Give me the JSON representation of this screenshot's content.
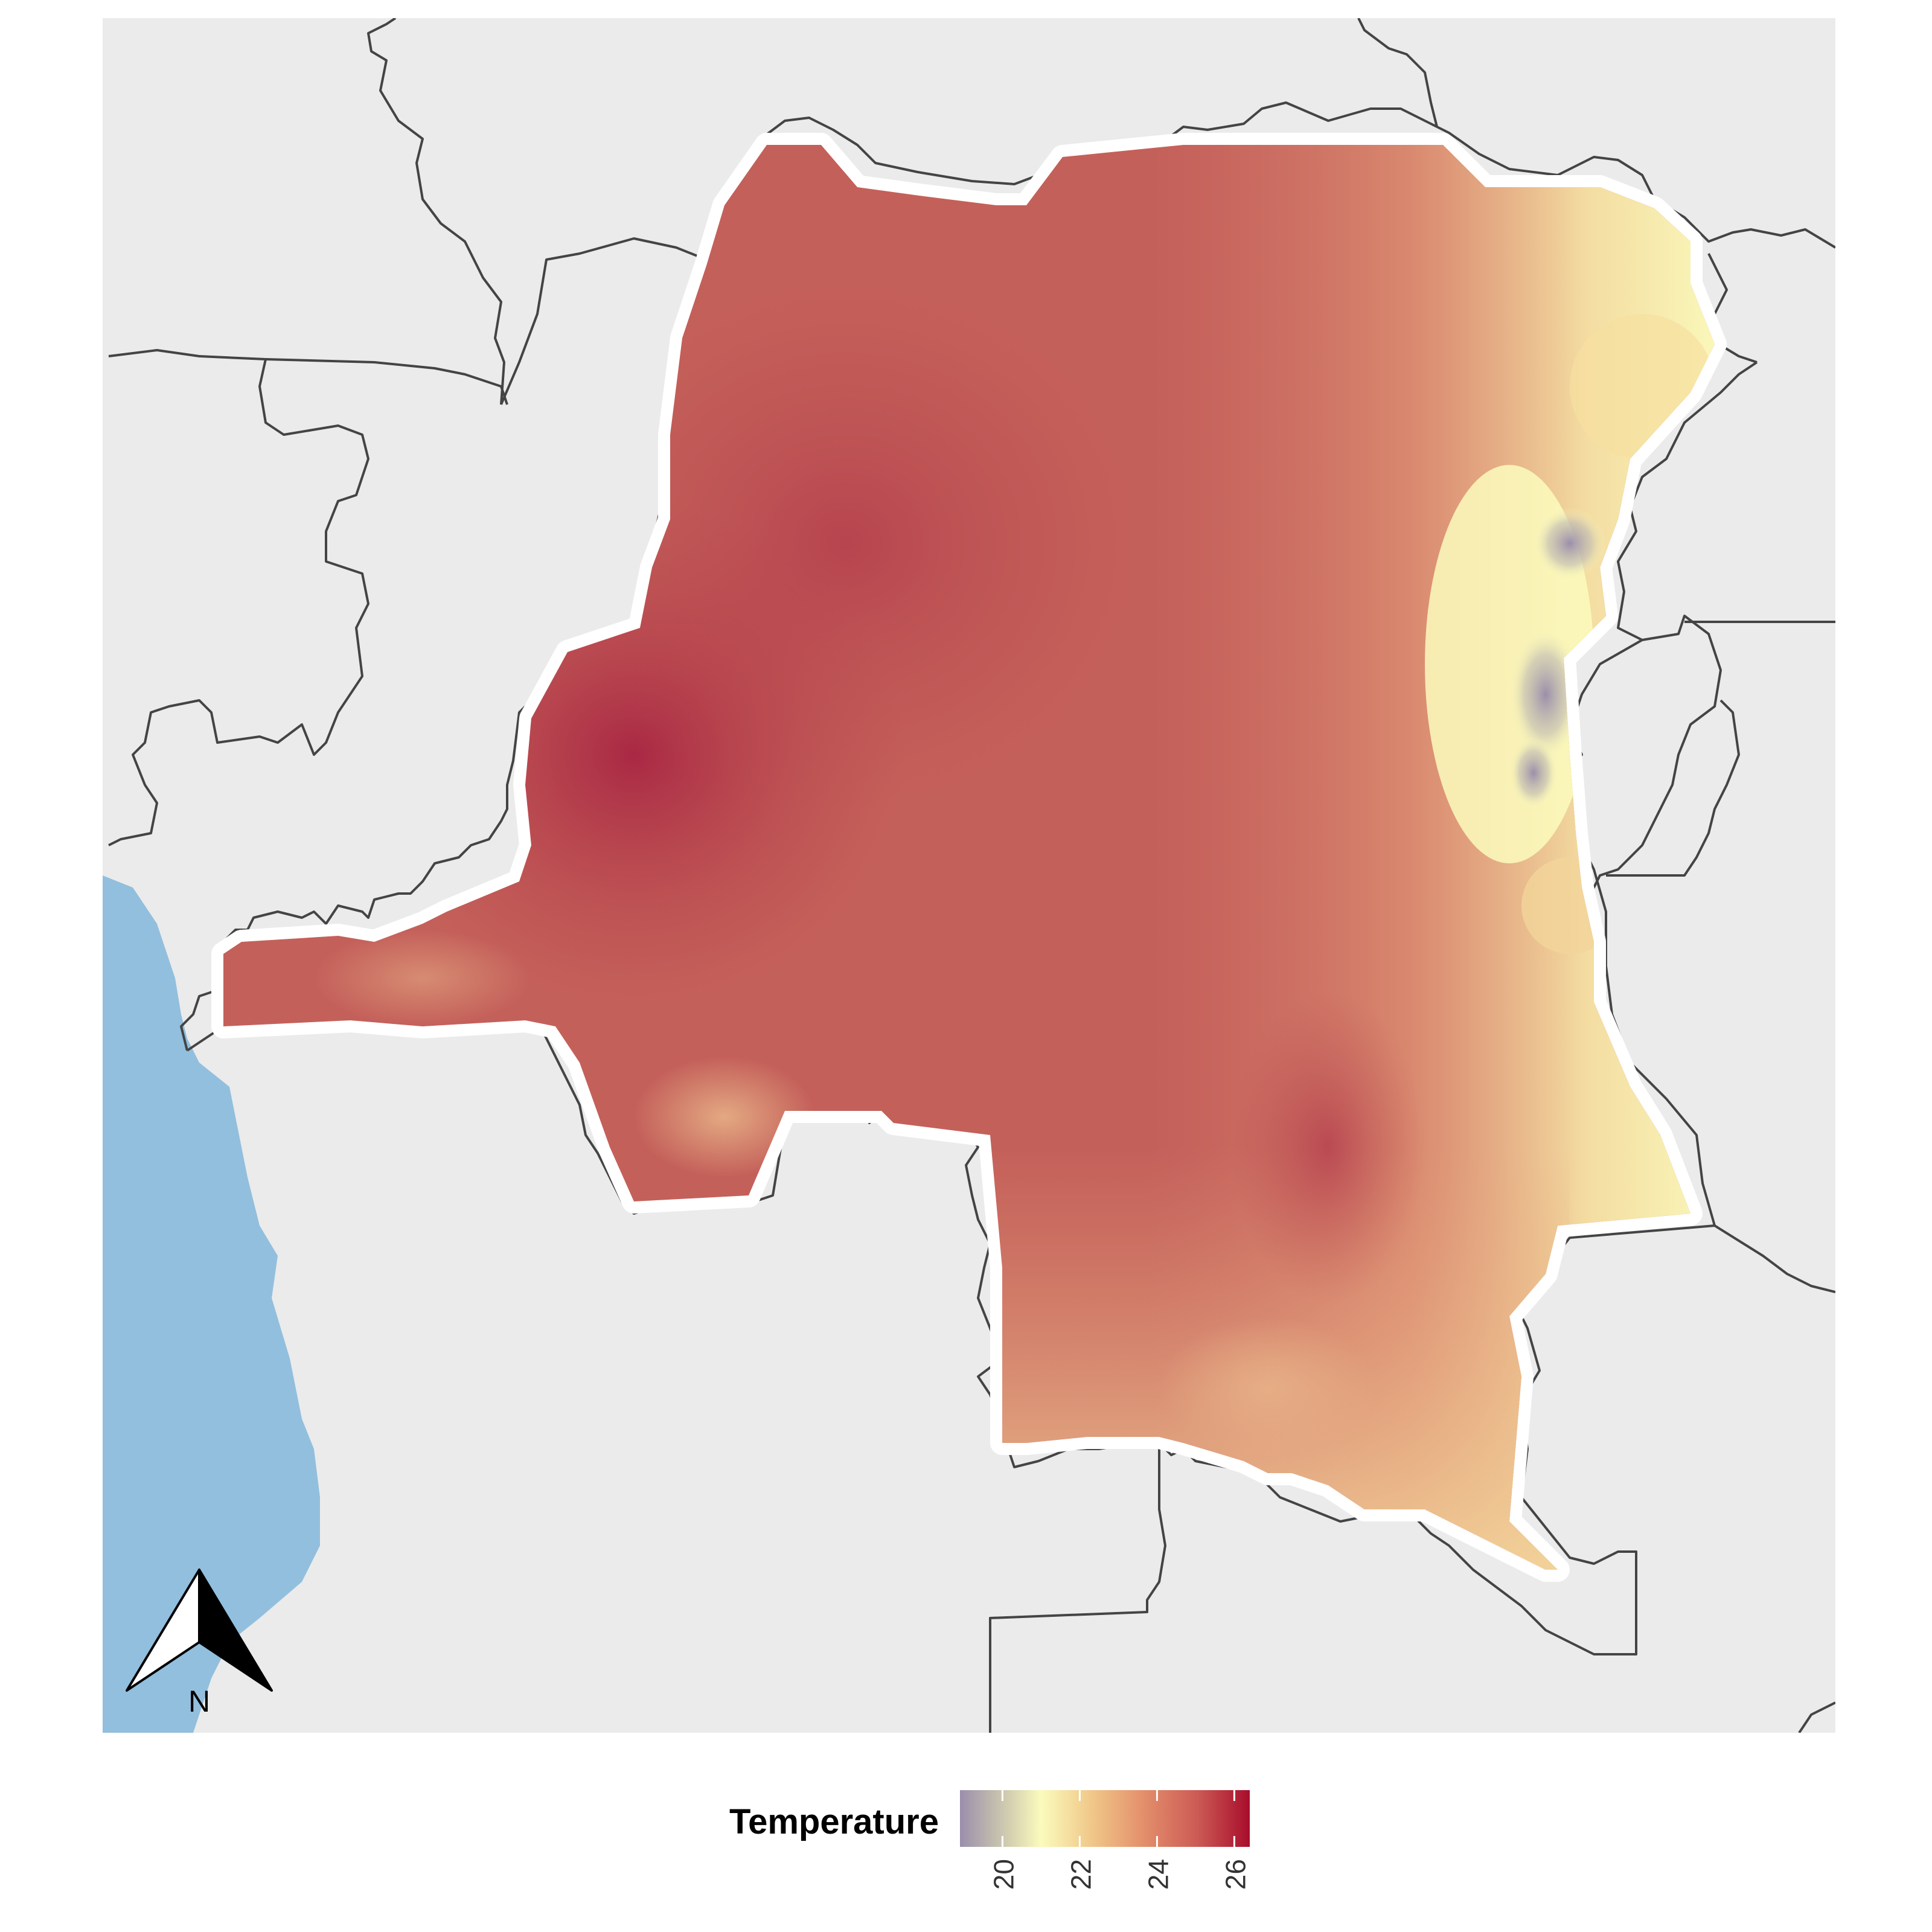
{
  "map": {
    "legend": {
      "title": "Temperature",
      "ticks": [
        "20",
        "22",
        "24",
        "26"
      ],
      "tick_values": [
        20,
        22,
        24,
        26
      ],
      "range": [
        18.9,
        26.4
      ],
      "palette": [
        "#9a8fab",
        "#fbfbbd",
        "#f0c98a",
        "#e5936d",
        "#cc5a55",
        "#a80d2b"
      ]
    },
    "north_arrow": {
      "label": "N"
    },
    "colors": {
      "background": "#ebebeb",
      "ocean": "#92bfdd",
      "borders": "#444444",
      "outline": "#ffffff"
    }
  }
}
